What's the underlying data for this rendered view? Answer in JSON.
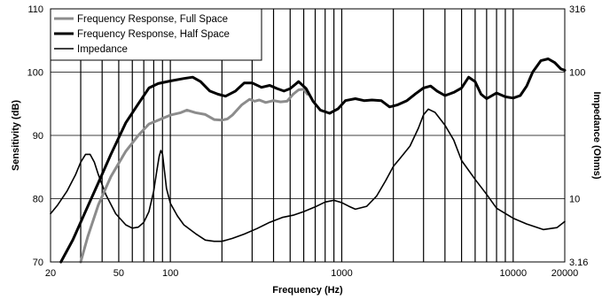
{
  "chart_data": {
    "type": "line",
    "title": "",
    "xlabel": "Frequency (Hz)",
    "ylabel": "Sensitivity (dB)",
    "y2label": "Impedance (Ohms)",
    "x_scale": "log",
    "xlim": [
      20,
      20000
    ],
    "ylim": [
      70,
      110
    ],
    "y2lim": [
      3.16,
      316
    ],
    "y2_scale": "log",
    "grid": true,
    "legend_position": "top-left",
    "x_ticks": [
      {
        "value": 20,
        "label": "20"
      },
      {
        "value": 50,
        "label": "50"
      },
      {
        "value": 100,
        "label": "100"
      },
      {
        "value": 1000,
        "label": "1000"
      },
      {
        "value": 10000,
        "label": "10000"
      },
      {
        "value": 20000,
        "label": "20000"
      }
    ],
    "y_ticks": [
      {
        "value": 70,
        "label": "70"
      },
      {
        "value": 80,
        "label": "80"
      },
      {
        "value": 90,
        "label": "90"
      },
      {
        "value": 100,
        "label": "100"
      },
      {
        "value": 110,
        "label": "110"
      }
    ],
    "y2_ticks": [
      {
        "value": 3.16,
        "label": "3.16"
      },
      {
        "value": 10,
        "label": "10"
      },
      {
        "value": 100,
        "label": "100"
      },
      {
        "value": 316,
        "label": "316"
      }
    ],
    "grid_x": [
      30,
      40,
      60,
      70,
      80,
      90,
      200,
      300,
      400,
      500,
      600,
      700,
      800,
      900,
      2000,
      3000,
      4000,
      5000,
      6000,
      7000,
      8000,
      9000
    ],
    "series": [
      {
        "name": "Frequency Response, Full Space",
        "color": "#8c8c8c",
        "width": 3,
        "axis": "left",
        "x": [
          30,
          33,
          38,
          45,
          55,
          65,
          75,
          85,
          100,
          115,
          125,
          140,
          160,
          180,
          200,
          215,
          230,
          260,
          290,
          310,
          330,
          360,
          400,
          440,
          480,
          520,
          560,
          600,
          630
        ],
        "y": [
          70,
          74,
          79,
          83.5,
          87.5,
          90,
          91.8,
          92.4,
          93.2,
          93.6,
          94,
          93.6,
          93.3,
          92.5,
          92.4,
          92.6,
          93.2,
          94.8,
          95.7,
          95.4,
          95.6,
          95.2,
          95.5,
          95.3,
          95.4,
          96.5,
          97.2,
          97.3,
          96.5
        ]
      },
      {
        "name": "Frequency Response, Half Space",
        "color": "#000000",
        "width": 3,
        "axis": "left",
        "x": [
          23,
          27,
          32,
          38,
          45,
          55,
          65,
          75,
          85,
          100,
          120,
          135,
          150,
          170,
          190,
          210,
          240,
          270,
          300,
          340,
          380,
          420,
          460,
          500,
          560,
          620,
          680,
          750,
          850,
          950,
          1050,
          1200,
          1350,
          1500,
          1700,
          1900,
          2100,
          2400,
          2700,
          3000,
          3300,
          3600,
          4000,
          4500,
          5000,
          5500,
          6000,
          6500,
          7000,
          8000,
          9000,
          10000,
          11000,
          12000,
          13000,
          14500,
          16000,
          17500,
          19000,
          20000
        ],
        "y": [
          70,
          73.5,
          78,
          82.5,
          87,
          92,
          95,
          97.5,
          98.2,
          98.6,
          99,
          99.2,
          98.5,
          97,
          96.5,
          96.2,
          97,
          98.3,
          98.3,
          97.6,
          97.9,
          97.4,
          97,
          97.4,
          98.5,
          97.4,
          95.4,
          94,
          93.5,
          94.2,
          95.5,
          95.8,
          95.5,
          95.6,
          95.5,
          94.5,
          94.8,
          95.5,
          96.6,
          97.5,
          97.8,
          97,
          96.3,
          96.8,
          97.5,
          99.2,
          98.5,
          96.5,
          95.8,
          96.7,
          96.1,
          95.9,
          96.3,
          97.8,
          100,
          101.8,
          102.1,
          101.5,
          100.5,
          100.3
        ]
      },
      {
        "name": "Impedance",
        "color": "#000000",
        "width": 1.6,
        "axis": "right",
        "x": [
          20,
          22,
          25,
          28,
          30,
          32,
          34,
          36,
          38,
          42,
          48,
          55,
          60,
          65,
          70,
          75,
          80,
          83,
          86,
          88,
          90,
          92,
          95,
          100,
          110,
          120,
          140,
          160,
          180,
          200,
          230,
          270,
          320,
          380,
          450,
          520,
          600,
          700,
          800,
          900,
          1000,
          1100,
          1200,
          1400,
          1600,
          1800,
          2000,
          2200,
          2500,
          2800,
          3000,
          3200,
          3500,
          4000,
          4500,
          5000,
          6000,
          7000,
          8000,
          10000,
          12000,
          15000,
          18000,
          20000
        ],
        "y": [
          7.6,
          8.9,
          11.5,
          15.5,
          19.4,
          22.4,
          22.4,
          19.4,
          15.5,
          10.8,
          7.6,
          6.2,
          5.85,
          5.95,
          6.5,
          7.9,
          11.5,
          16,
          21.5,
          24,
          22.5,
          17.5,
          12,
          9.2,
          7.3,
          6.2,
          5.3,
          4.7,
          4.6,
          4.6,
          4.85,
          5.25,
          5.8,
          6.5,
          7.1,
          7.4,
          7.9,
          8.6,
          9.4,
          9.7,
          9.3,
          8.7,
          8.25,
          8.7,
          10.5,
          13.8,
          18,
          21,
          26,
          36,
          46,
          51,
          48,
          38,
          29,
          20,
          14.2,
          10.8,
          8.4,
          7.0,
          6.3,
          5.7,
          5.9,
          6.6
        ]
      }
    ]
  }
}
